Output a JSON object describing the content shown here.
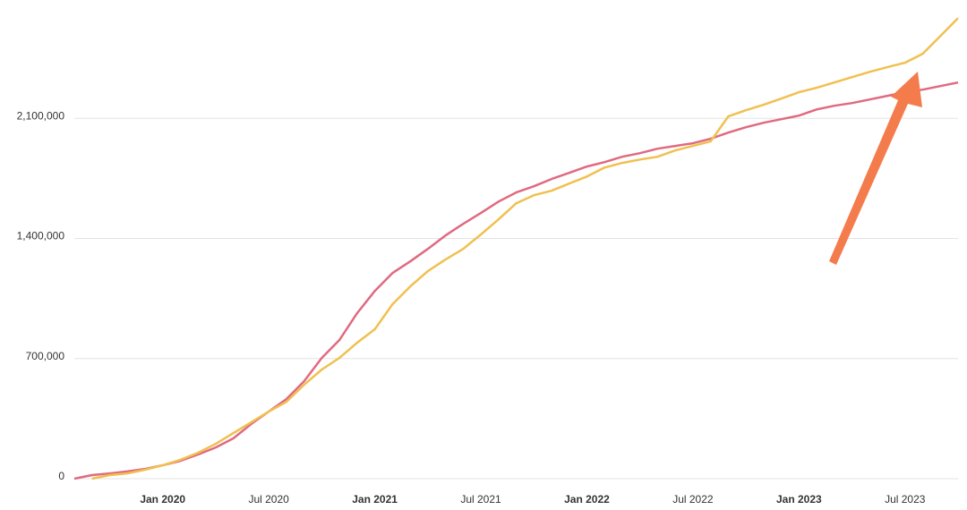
{
  "chart_data": {
    "type": "line",
    "categories": [
      null,
      null,
      null,
      null,
      null,
      "Jan 2020",
      null,
      null,
      null,
      null,
      null,
      "Jul 2020",
      null,
      null,
      null,
      null,
      null,
      "Jan 2021",
      null,
      null,
      null,
      null,
      null,
      "Jul 2021",
      null,
      null,
      null,
      null,
      null,
      "Jan 2022",
      null,
      null,
      null,
      null,
      null,
      "Jul 2022",
      null,
      null,
      null,
      null,
      null,
      "Jan 2023",
      null,
      null,
      null,
      null,
      null,
      "Jul 2023",
      null,
      null,
      null
    ],
    "series": [
      {
        "color": "#e06a80",
        "values": [
          0,
          21000,
          31000,
          42000,
          57000,
          78000,
          104000,
          141000,
          182000,
          235000,
          318000,
          391000,
          464000,
          568000,
          704000,
          808000,
          964000,
          1094000,
          1198000,
          1266000,
          1339000,
          1417000,
          1485000,
          1548000,
          1615000,
          1668000,
          1704000,
          1746000,
          1782000,
          1819000,
          1845000,
          1876000,
          1897000,
          1923000,
          1939000,
          1955000,
          1981000,
          2017000,
          2048000,
          2074000,
          2095000,
          2116000,
          2152000,
          2173000,
          2189000,
          2210000,
          2231000,
          2252000,
          2267000,
          2288000,
          2309000
        ]
      },
      {
        "color": "#f0c050",
        "values": [
          null,
          0,
          21000,
          31000,
          52000,
          78000,
          110000,
          151000,
          203000,
          266000,
          328000,
          391000,
          448000,
          547000,
          636000,
          704000,
          792000,
          871000,
          1016000,
          1120000,
          1209000,
          1277000,
          1339000,
          1423000,
          1511000,
          1605000,
          1652000,
          1678000,
          1720000,
          1761000,
          1813000,
          1840000,
          1860000,
          1876000,
          1913000,
          1939000,
          1965000,
          2111000,
          2147000,
          2179000,
          2215000,
          2252000,
          2278000,
          2309000,
          2340000,
          2371000,
          2398000,
          2424000,
          2476000,
          2580000,
          2684000
        ]
      }
    ],
    "ylim": [
      0,
      2800000
    ],
    "yticks": [
      0,
      {
        "value": 700000,
        "label": "700,000"
      },
      {
        "value": 1400000,
        "label": "1,400,000"
      },
      {
        "value": 2100000,
        "label": "2,100,000"
      }
    ],
    "grid": true
  }
}
